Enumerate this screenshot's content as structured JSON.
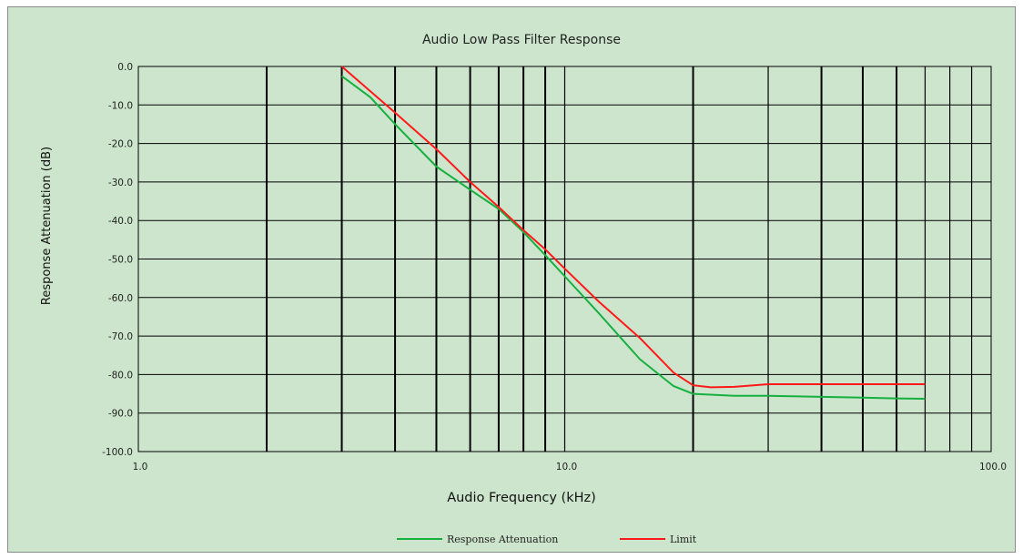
{
  "chart_data": {
    "type": "line",
    "title": "Audio Low Pass Filter Response",
    "xlabel": "Audio Frequency (kHz)",
    "ylabel": "Response  Attenuation (dB)",
    "x_scale": "log",
    "xlim": [
      1,
      100
    ],
    "ylim": [
      -100,
      0
    ],
    "x_ticks": [
      1,
      10,
      100
    ],
    "x_tick_labels": [
      "1.0",
      "10.0",
      "100.0"
    ],
    "y_ticks": [
      0,
      -10,
      -20,
      -30,
      -40,
      -50,
      -60,
      -70,
      -80,
      -90,
      -100
    ],
    "y_tick_labels": [
      "0.0",
      "-10.0",
      "-20.0",
      "-30.0",
      "-40.0",
      "-50.0",
      "-60.0",
      "-70.0",
      "-80.0",
      "-90.0",
      "-100.0"
    ],
    "grid": true,
    "legend_position": "bottom",
    "series": [
      {
        "name": "Response Attenuation",
        "color": "#16b040",
        "x": [
          3,
          3.5,
          4,
          5,
          6,
          7,
          8,
          9,
          10,
          12,
          15,
          18,
          20,
          25,
          30,
          40,
          50,
          60,
          70
        ],
        "y": [
          -2.5,
          -8,
          -15,
          -26,
          -32,
          -37,
          -43,
          -49,
          -54.5,
          -64,
          -76,
          -83,
          -85,
          -85.5,
          -85.5,
          -85.8,
          -86,
          -86.2,
          -86.3
        ]
      },
      {
        "name": "Limit",
        "color": "#ff1a1a",
        "x": [
          3,
          4,
          5,
          6,
          7,
          8,
          9,
          10,
          12,
          15,
          18,
          20,
          22,
          25,
          30,
          40,
          50,
          60,
          70
        ],
        "y": [
          0,
          -12,
          -21.5,
          -30,
          -36.5,
          -42.5,
          -47.5,
          -52.5,
          -61,
          -70.5,
          -79.5,
          -82.8,
          -83.3,
          -83.2,
          -82.5,
          -82.5,
          -82.5,
          -82.5,
          -82.5
        ]
      }
    ]
  }
}
